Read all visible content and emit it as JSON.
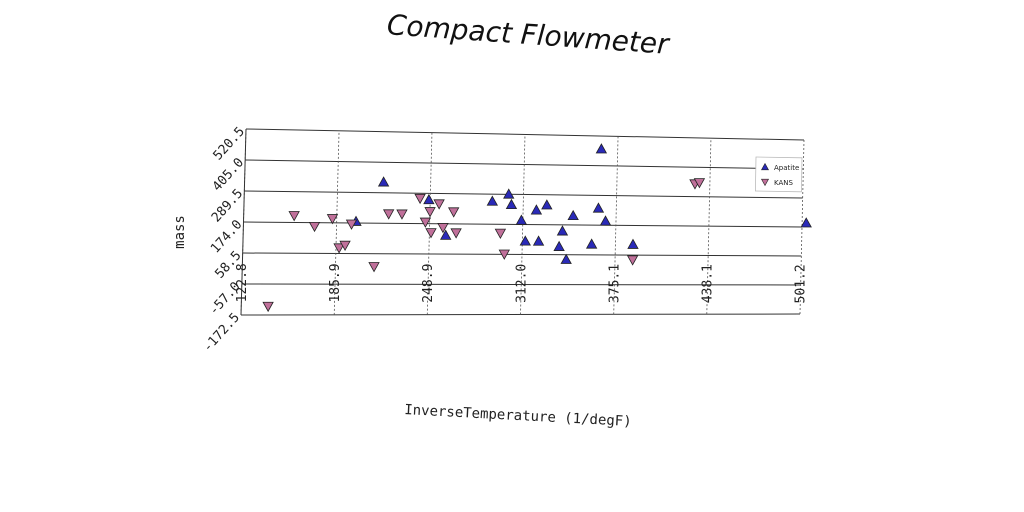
{
  "chart_data": {
    "type": "scatter",
    "title": "Compact Flowmeter",
    "xlabel": "InverseTemperature (1/degF)",
    "ylabel": "mass",
    "xlim": [
      122.8,
      501.2
    ],
    "ylim": [
      -172.5,
      520.5
    ],
    "x_ticks": [
      "122.8",
      "185.9",
      "248.9",
      "312.0",
      "375.1",
      "438.1",
      "501.2"
    ],
    "y_ticks": [
      "-172.5",
      "-57.0",
      "58.5",
      "174.0",
      "289.5",
      "405.0",
      "520.5"
    ],
    "grid": "horizontal solid, vertical dashed",
    "legend_position": "top-right",
    "series": [
      {
        "name": "Apatite",
        "marker": "triangle-up",
        "color": "#2a2ab8",
        "points": [
          [
            199,
            180
          ],
          [
            217,
            330
          ],
          [
            248,
            265
          ],
          [
            260,
            130
          ],
          [
            291,
            262
          ],
          [
            302,
            290
          ],
          [
            304,
            250
          ],
          [
            311,
            190
          ],
          [
            314,
            110
          ],
          [
            321,
            230
          ],
          [
            323,
            110
          ],
          [
            328,
            250
          ],
          [
            337,
            90
          ],
          [
            339,
            150
          ],
          [
            342,
            40
          ],
          [
            346,
            210
          ],
          [
            359,
            100
          ],
          [
            363,
            240
          ],
          [
            364,
            470
          ],
          [
            368,
            190
          ],
          [
            387,
            100
          ],
          [
            504,
            190
          ]
        ]
      },
      {
        "name": "KANS",
        "marker": "triangle-down",
        "color": "#c0709a",
        "points": [
          [
            141,
            -140
          ],
          [
            157,
            200
          ],
          [
            171,
            160
          ],
          [
            183,
            190
          ],
          [
            188,
            80
          ],
          [
            192,
            90
          ],
          [
            196,
            170
          ],
          [
            212,
            10
          ],
          [
            221,
            210
          ],
          [
            230,
            210
          ],
          [
            242,
            270
          ],
          [
            246,
            180
          ],
          [
            249,
            220
          ],
          [
            250,
            140
          ],
          [
            255,
            250
          ],
          [
            258,
            160
          ],
          [
            265,
            220
          ],
          [
            267,
            140
          ],
          [
            297,
            140
          ],
          [
            300,
            60
          ],
          [
            387,
            40
          ],
          [
            428,
            340
          ],
          [
            431,
            345
          ]
        ]
      }
    ]
  }
}
